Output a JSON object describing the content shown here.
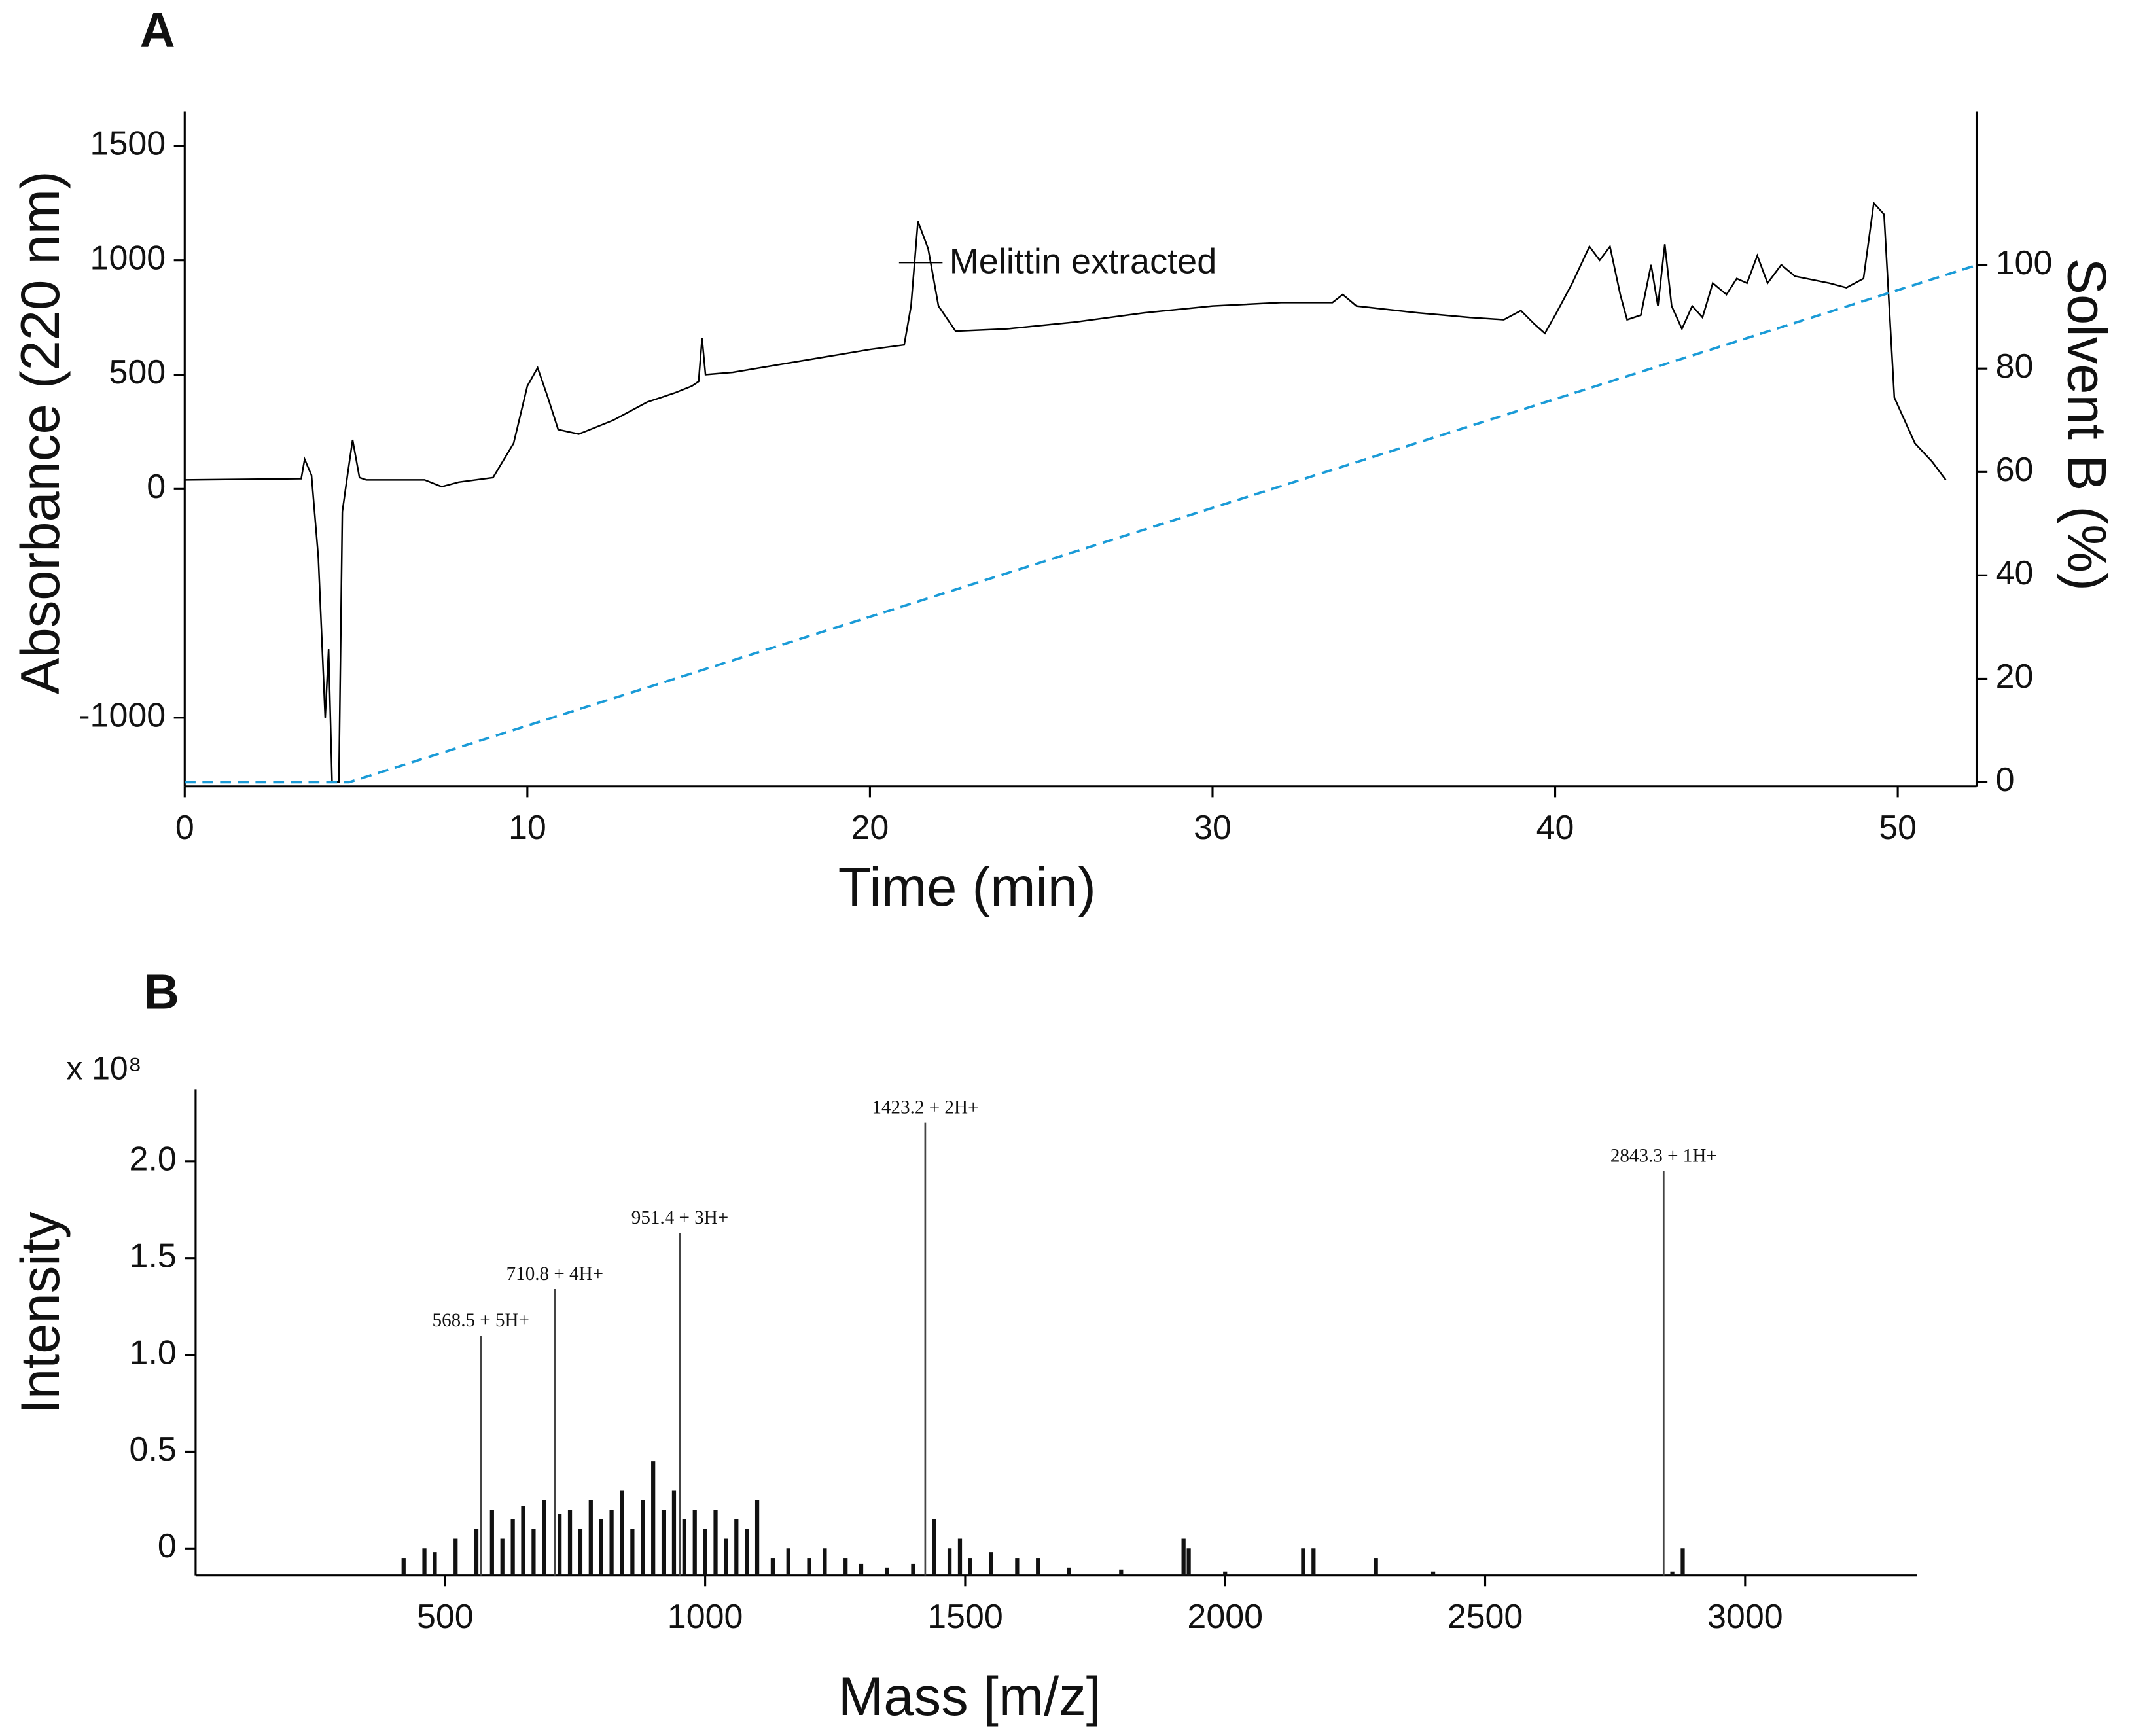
{
  "chart_data": [
    {
      "type": "line",
      "panel_label": "A",
      "x_label": "Time (min)",
      "y_label": "Absorbance (220 nm)",
      "y2_label": "Solvent B (%)",
      "annotation": "Melittin extracted",
      "xlim": [
        0,
        52.3
      ],
      "xticks": [
        0,
        10,
        20,
        30,
        40,
        50
      ],
      "ylim": [
        -1300,
        1650
      ],
      "yticks": [
        -1000,
        0,
        500,
        1000,
        1500
      ],
      "y2lim": [
        -0.8,
        129.7
      ],
      "y2ticks": [
        0,
        20,
        40,
        60,
        80,
        100
      ],
      "series": [
        {
          "color": "#000000",
          "x": [
            0,
            3.4,
            3.5,
            3.7,
            3.9,
            4.1,
            4.2,
            4.3,
            4.5,
            4.6,
            4.75,
            4.9,
            5.1,
            5.3,
            7.0,
            7.5,
            8.0,
            9.0,
            9.6,
            10.0,
            10.3,
            10.6,
            10.9,
            11.5,
            12.5,
            13.5,
            14.3,
            14.8,
            15.0,
            15.1,
            15.2,
            16,
            18,
            20,
            21,
            21.2,
            21.4,
            21.7,
            22.0,
            22.5,
            24,
            26,
            28,
            30,
            32,
            33.5,
            33.8,
            34.2,
            36,
            37.5,
            38.5,
            39.0,
            39.4,
            39.7,
            40.0,
            40.5,
            41.0,
            41.3,
            41.6,
            41.9,
            42.1,
            42.5,
            42.8,
            43.0,
            43.2,
            43.4,
            43.7,
            44.0,
            44.3,
            44.6,
            45.0,
            45.3,
            45.6,
            45.9,
            46.2,
            46.6,
            47.0,
            48.0,
            48.5,
            49.0,
            49.3,
            49.6,
            49.9,
            50.5,
            51,
            51.4
          ],
          "values": [
            40,
            45,
            130,
            60,
            -300,
            -1000,
            -700,
            -1280,
            -1280,
            -100,
            60,
            215,
            50,
            40,
            40,
            10,
            30,
            50,
            200,
            450,
            530,
            400,
            260,
            240,
            300,
            380,
            420,
            450,
            470,
            660,
            500,
            510,
            560,
            610,
            630,
            800,
            1170,
            1050,
            800,
            690,
            700,
            730,
            770,
            800,
            815,
            815,
            850,
            800,
            770,
            750,
            740,
            780,
            720,
            680,
            760,
            900,
            1060,
            1000,
            1060,
            850,
            740,
            760,
            980,
            800,
            1070,
            800,
            700,
            800,
            750,
            900,
            850,
            920,
            900,
            1020,
            900,
            980,
            930,
            900,
            880,
            920,
            1250,
            1200,
            400,
            200,
            120,
            40
          ]
        },
        {
          "color": "#1a9bd7",
          "dash": true,
          "axis": "y2",
          "x": [
            0,
            4.8,
            52.3
          ],
          "values": [
            0,
            0,
            100
          ]
        }
      ]
    },
    {
      "type": "bar",
      "panel_label": "B",
      "x_label": "Mass [m/z]",
      "y_label": "Intensity",
      "axis_multiplier": "x 10⁸",
      "xlim": [
        20,
        3330
      ],
      "xticks": [
        500,
        1000,
        1500,
        2000,
        2500,
        3000
      ],
      "ylim": [
        -0.14,
        2.37
      ],
      "yticks": [
        0,
        0.5,
        {
          "value": 1,
          "label": "1.0"
        },
        1.5,
        {
          "value": 2,
          "label": "2.0"
        }
      ],
      "series": [
        {
          "color": "#111111",
          "x": [
            420,
            460,
            480,
            520,
            560,
            590,
            610,
            630,
            650,
            670,
            690,
            720,
            740,
            760,
            780,
            800,
            820,
            840,
            860,
            880,
            900,
            920,
            940,
            960,
            980,
            1000,
            1020,
            1040,
            1060,
            1080,
            1100,
            1130,
            1160,
            1200,
            1230,
            1270,
            1300,
            1350,
            1400,
            1440,
            1470,
            1490,
            1510,
            1550,
            1600,
            1640,
            1700,
            1800,
            1920,
            1930,
            2000,
            2150,
            2170,
            2290,
            2400,
            2860,
            2880
          ],
          "values": [
            -0.05,
            0,
            -0.02,
            0.05,
            0.1,
            0.2,
            0.05,
            0.15,
            0.22,
            0.1,
            0.25,
            0.18,
            0.2,
            0.1,
            0.25,
            0.15,
            0.2,
            0.3,
            0.1,
            0.25,
            0.45,
            0.2,
            0.3,
            0.15,
            0.2,
            0.1,
            0.2,
            0.05,
            0.15,
            0.1,
            0.25,
            -0.05,
            0,
            -0.05,
            0,
            -0.05,
            -0.08,
            -0.1,
            -0.08,
            0.15,
            0,
            0.05,
            -0.05,
            -0.02,
            -0.05,
            -0.05,
            -0.1,
            -0.11,
            0.05,
            0,
            -0.12,
            0,
            0,
            -0.05,
            -0.12,
            -0.12,
            0
          ]
        },
        {
          "color": "#444444",
          "x": [
            568.5,
            710.8,
            951.4,
            1423.2,
            2843.3
          ],
          "values": [
            1.1,
            1.34,
            1.63,
            2.2,
            1.95
          ],
          "peak_labels": [
            "568.5 + 5H+",
            "710.8 + 4H+",
            "951.4 + 3H+",
            "1423.2 + 2H+",
            "2843.3 + 1H+"
          ]
        }
      ]
    }
  ]
}
